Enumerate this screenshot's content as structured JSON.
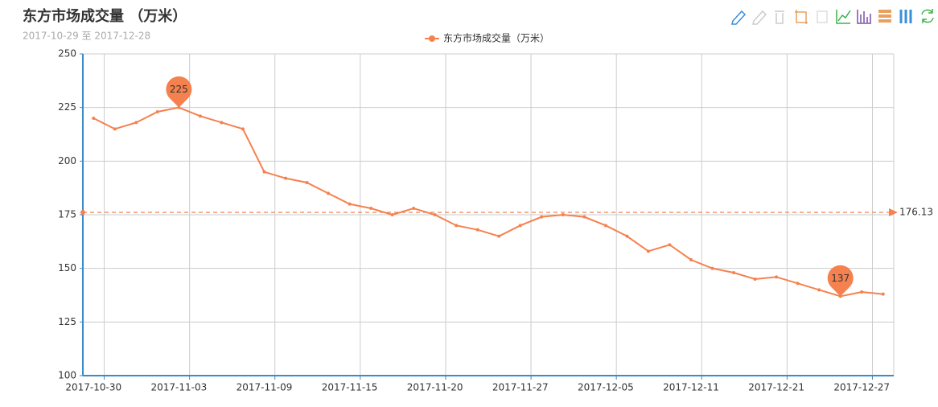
{
  "chart_data": {
    "type": "line",
    "title": "东方市场成交量 （万米）",
    "subtitle": "2017-10-29 至 2017-12-28",
    "categories": [
      "2017-10-30",
      null,
      null,
      null,
      "2017-11-03",
      null,
      null,
      null,
      "2017-11-09",
      null,
      null,
      null,
      "2017-11-15",
      null,
      null,
      null,
      "2017-11-20",
      null,
      null,
      null,
      "2017-11-27",
      null,
      null,
      null,
      "2017-12-05",
      null,
      null,
      null,
      "2017-12-11",
      null,
      null,
      null,
      "2017-12-21",
      null,
      null,
      null,
      "2017-12-27",
      null
    ],
    "series": [
      {
        "name": "东方市场成交量（万米）",
        "color": "#f5814f",
        "values": [
          220,
          215,
          218,
          223,
          225,
          221,
          218,
          215,
          195,
          192,
          190,
          185,
          180,
          178,
          175,
          178,
          175,
          170,
          168,
          165,
          170,
          174,
          175,
          174,
          170,
          165,
          158,
          161,
          154,
          150,
          148,
          145,
          146,
          143,
          140,
          137,
          139,
          138
        ]
      }
    ],
    "mark_points": [
      225,
      137
    ],
    "average_line": 176.13,
    "ylim": [
      100,
      250
    ],
    "yticks": [
      100,
      125,
      150,
      175,
      200,
      225,
      250
    ],
    "grid": true
  }
}
